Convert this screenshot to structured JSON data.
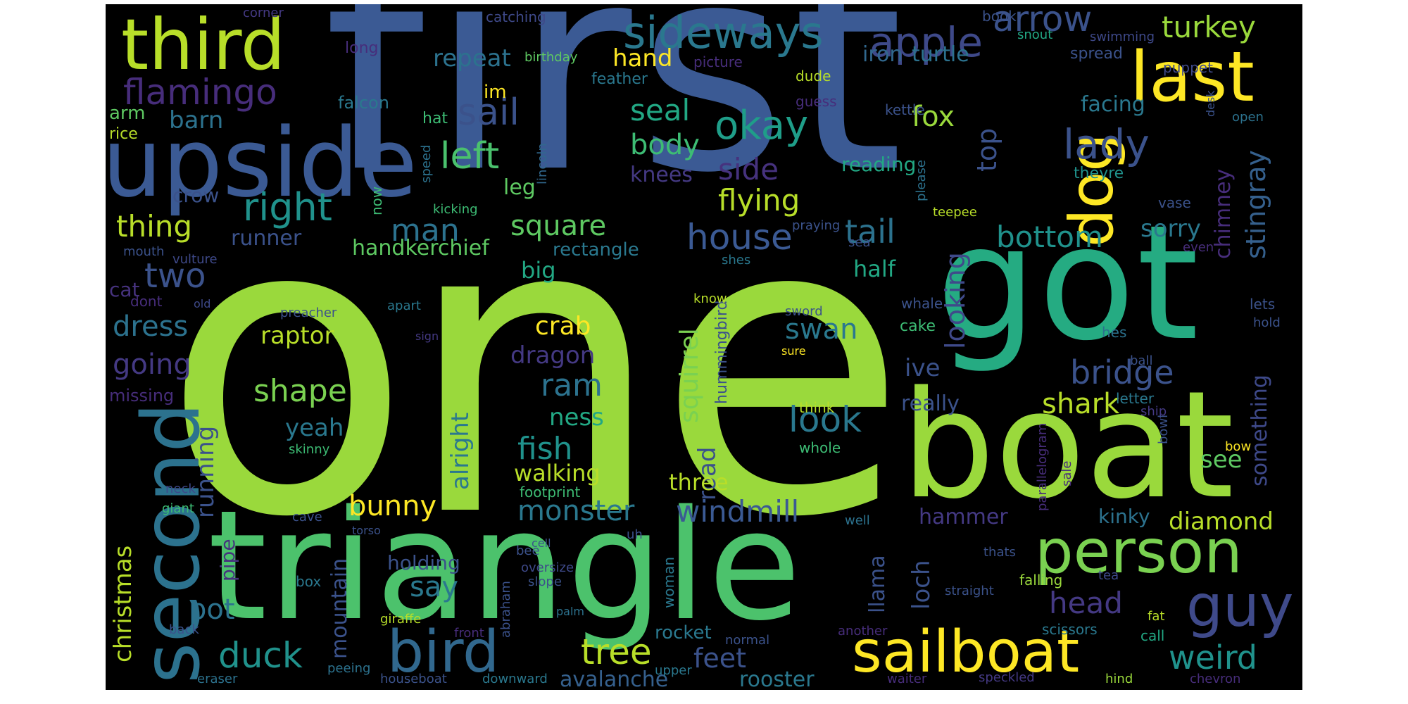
{
  "background_color": "#000000",
  "colormap": "viridis",
  "words": [
    {
      "text": "one",
      "color": "#9ad93c"
    },
    {
      "text": "first",
      "color": "#3b5a94"
    },
    {
      "text": "triangle",
      "color": "#4cc26c"
    },
    {
      "text": "got",
      "color": "#25ab82"
    },
    {
      "text": "boat",
      "color": "#9ad93c"
    },
    {
      "text": "upside",
      "color": "#3b5a94"
    },
    {
      "text": "second",
      "color": "#2c728e"
    },
    {
      "text": "third",
      "color": "#b8de29"
    },
    {
      "text": "last",
      "color": "#fde725"
    },
    {
      "text": "dog",
      "color": "#fde725"
    },
    {
      "text": "person",
      "color": "#7ad151"
    },
    {
      "text": "sailboat",
      "color": "#fde725"
    },
    {
      "text": "bird",
      "color": "#31688e"
    },
    {
      "text": "guy",
      "color": "#3f4a8a"
    },
    {
      "text": "sideways",
      "color": "#2a788e"
    },
    {
      "text": "apple",
      "color": "#3e4989"
    },
    {
      "text": "arrow",
      "color": "#3b528b"
    },
    {
      "text": "turkey",
      "color": "#9ad93c"
    },
    {
      "text": "flamingo",
      "color": "#472d7b"
    },
    {
      "text": "repeat",
      "color": "#2c728e"
    },
    {
      "text": "sail",
      "color": "#3b528b"
    },
    {
      "text": "okay",
      "color": "#1f9e89"
    },
    {
      "text": "lady",
      "color": "#3b528b"
    },
    {
      "text": "fox",
      "color": "#9ad93c"
    },
    {
      "text": "hand",
      "color": "#fde725"
    },
    {
      "text": "iron",
      "color": "#31688e"
    },
    {
      "text": "turtle",
      "color": "#2c728e"
    },
    {
      "text": "seal",
      "color": "#22a884"
    },
    {
      "text": "facing",
      "color": "#2a788e"
    },
    {
      "text": "barn",
      "color": "#2c728e"
    },
    {
      "text": "body",
      "color": "#3dbc74"
    },
    {
      "text": "left",
      "color": "#4ac16d"
    },
    {
      "text": "right",
      "color": "#20928c"
    },
    {
      "text": "side",
      "color": "#46327e"
    },
    {
      "text": "knees",
      "color": "#443983"
    },
    {
      "text": "flying",
      "color": "#b8de29"
    },
    {
      "text": "reading",
      "color": "#22a884"
    },
    {
      "text": "top",
      "color": "#3b528b"
    },
    {
      "text": "crow",
      "color": "#3b528b"
    },
    {
      "text": "leg",
      "color": "#5ec962"
    },
    {
      "text": "thing",
      "color": "#b8de29"
    },
    {
      "text": "man",
      "color": "#2c728e"
    },
    {
      "text": "square",
      "color": "#5ec962"
    },
    {
      "text": "house",
      "color": "#3b5a94"
    },
    {
      "text": "tail",
      "color": "#2c728e"
    },
    {
      "text": "bottom",
      "color": "#20928c"
    },
    {
      "text": "sorry",
      "color": "#2a788e"
    },
    {
      "text": "stingray",
      "color": "#35608d"
    },
    {
      "text": "chimney",
      "color": "#472d7b"
    },
    {
      "text": "runner",
      "color": "#3b528b"
    },
    {
      "text": "handkerchief",
      "color": "#5ec962"
    },
    {
      "text": "rectangle",
      "color": "#2a788e"
    },
    {
      "text": "two",
      "color": "#3b528b"
    },
    {
      "text": "big",
      "color": "#22a884"
    },
    {
      "text": "looking",
      "color": "#3f4a8a"
    },
    {
      "text": "half",
      "color": "#22a884"
    },
    {
      "text": "dress",
      "color": "#2c728e"
    },
    {
      "text": "raptor",
      "color": "#b8de29"
    },
    {
      "text": "swan",
      "color": "#2a788e"
    },
    {
      "text": "crab",
      "color": "#fde725"
    },
    {
      "text": "squirrel",
      "color": "#7ad151"
    },
    {
      "text": "hummingbird",
      "color": "#3b528b"
    },
    {
      "text": "shape",
      "color": "#7ad151"
    },
    {
      "text": "going",
      "color": "#443983"
    },
    {
      "text": "dragon",
      "color": "#443983"
    },
    {
      "text": "ram",
      "color": "#2c728e"
    },
    {
      "text": "look",
      "color": "#2a788e"
    },
    {
      "text": "ive",
      "color": "#3b528b"
    },
    {
      "text": "bridge",
      "color": "#3b528b"
    },
    {
      "text": "alright",
      "color": "#2a788e"
    },
    {
      "text": "ness",
      "color": "#22a884"
    },
    {
      "text": "really",
      "color": "#3b528b"
    },
    {
      "text": "shark",
      "color": "#b8de29"
    },
    {
      "text": "yeah",
      "color": "#2a788e"
    },
    {
      "text": "fish",
      "color": "#20928c"
    },
    {
      "text": "road",
      "color": "#3b528b"
    },
    {
      "text": "something",
      "color": "#3e4989"
    },
    {
      "text": "see",
      "color": "#5ec962"
    },
    {
      "text": "running",
      "color": "#3b528b"
    },
    {
      "text": "walking",
      "color": "#b8de29"
    },
    {
      "text": "three",
      "color": "#b8de29"
    },
    {
      "text": "christmas",
      "color": "#b8de29"
    },
    {
      "text": "bunny",
      "color": "#fde725"
    },
    {
      "text": "monster",
      "color": "#2a788e"
    },
    {
      "text": "windmill",
      "color": "#3b5a94"
    },
    {
      "text": "hammer",
      "color": "#443983"
    },
    {
      "text": "kinky",
      "color": "#2c728e"
    },
    {
      "text": "diamond",
      "color": "#b8de29"
    },
    {
      "text": "pot",
      "color": "#2c728e"
    },
    {
      "text": "say",
      "color": "#2a788e"
    },
    {
      "text": "mountain",
      "color": "#3b528b"
    },
    {
      "text": "llama",
      "color": "#3b528b"
    },
    {
      "text": "loch",
      "color": "#3b528b"
    },
    {
      "text": "head",
      "color": "#443983"
    },
    {
      "text": "duck",
      "color": "#20928c"
    },
    {
      "text": "tree",
      "color": "#b8de29"
    },
    {
      "text": "feet",
      "color": "#3b528b"
    },
    {
      "text": "weird",
      "color": "#20928c"
    },
    {
      "text": "avalanche",
      "color": "#35608d"
    },
    {
      "text": "rooster",
      "color": "#2a788e"
    },
    {
      "text": "holding",
      "color": "#3b528b"
    },
    {
      "text": "rocket",
      "color": "#2a788e"
    },
    {
      "text": "pipe",
      "color": "#46327e"
    },
    {
      "text": "cat",
      "color": "#46327e"
    },
    {
      "text": "missing",
      "color": "#472d7b"
    },
    {
      "text": "im",
      "color": "#fde725"
    },
    {
      "text": "feather",
      "color": "#2a788e"
    },
    {
      "text": "falcon",
      "color": "#2a788e"
    },
    {
      "text": "arm",
      "color": "#5ec962"
    },
    {
      "text": "rice",
      "color": "#b8de29"
    },
    {
      "text": "corner",
      "color": "#443983"
    },
    {
      "text": "long",
      "color": "#472d7b"
    },
    {
      "text": "catching",
      "color": "#3e4989"
    },
    {
      "text": "birthday",
      "color": "#5ec962"
    },
    {
      "text": "picture",
      "color": "#472d7b"
    },
    {
      "text": "dude",
      "color": "#b8de29"
    },
    {
      "text": "guess",
      "color": "#472d7b"
    },
    {
      "text": "kettle",
      "color": "#3b528b"
    },
    {
      "text": "hat",
      "color": "#3dbc74"
    },
    {
      "text": "speed",
      "color": "#2c728e"
    },
    {
      "text": "lincoln",
      "color": "#31688e"
    },
    {
      "text": "kicking",
      "color": "#3dbc74"
    },
    {
      "text": "now",
      "color": "#3dbc74"
    },
    {
      "text": "praying",
      "color": "#3b528b"
    },
    {
      "text": "please",
      "color": "#2c728e"
    },
    {
      "text": "teepee",
      "color": "#b8de29"
    },
    {
      "text": "vase",
      "color": "#3b528b"
    },
    {
      "text": "theyre",
      "color": "#20928c"
    },
    {
      "text": "puppet",
      "color": "#3e4989"
    },
    {
      "text": "swimming",
      "color": "#3e4989"
    },
    {
      "text": "spread",
      "color": "#3b528b"
    },
    {
      "text": "snout",
      "color": "#22a884"
    },
    {
      "text": "book",
      "color": "#3b528b"
    },
    {
      "text": "desk",
      "color": "#3b528b"
    },
    {
      "text": "open",
      "color": "#2c728e"
    },
    {
      "text": "mouth",
      "color": "#3b528b"
    },
    {
      "text": "vulture",
      "color": "#3e4989"
    },
    {
      "text": "dont",
      "color": "#472d7b"
    },
    {
      "text": "old",
      "color": "#3e4989"
    },
    {
      "text": "preacher",
      "color": "#3b528b"
    },
    {
      "text": "apart",
      "color": "#2a788e"
    },
    {
      "text": "sign",
      "color": "#443983"
    },
    {
      "text": "skinny",
      "color": "#3dbc74"
    },
    {
      "text": "shes",
      "color": "#2a788e"
    },
    {
      "text": "know",
      "color": "#b8de29"
    },
    {
      "text": "sea",
      "color": "#3b528b"
    },
    {
      "text": "even",
      "color": "#472d7b"
    },
    {
      "text": "sword",
      "color": "#3b528b"
    },
    {
      "text": "whale",
      "color": "#3b528b"
    },
    {
      "text": "cake",
      "color": "#3dbc74"
    },
    {
      "text": "sure",
      "color": "#fde725"
    },
    {
      "text": "think",
      "color": "#b8de29"
    },
    {
      "text": "whole",
      "color": "#3dbc74"
    },
    {
      "text": "lets",
      "color": "#3b528b"
    },
    {
      "text": "hold",
      "color": "#3b528b"
    },
    {
      "text": "hes",
      "color": "#2c728e"
    },
    {
      "text": "ball",
      "color": "#3b528b"
    },
    {
      "text": "letter",
      "color": "#2a788e"
    },
    {
      "text": "ship",
      "color": "#443983"
    },
    {
      "text": "bowl",
      "color": "#3b528b"
    },
    {
      "text": "bow",
      "color": "#fde725"
    },
    {
      "text": "parallelogram",
      "color": "#472d7b"
    },
    {
      "text": "sale",
      "color": "#472d7b"
    },
    {
      "text": "neck",
      "color": "#3e4989"
    },
    {
      "text": "giant",
      "color": "#3dbc74"
    },
    {
      "text": "cave",
      "color": "#3b528b"
    },
    {
      "text": "torso",
      "color": "#3b528b"
    },
    {
      "text": "footprint",
      "color": "#3dbc74"
    },
    {
      "text": "oversize",
      "color": "#3e4989"
    },
    {
      "text": "bee",
      "color": "#3b528b"
    },
    {
      "text": "uh",
      "color": "#3b528b"
    },
    {
      "text": "cell",
      "color": "#3b528b"
    },
    {
      "text": "well",
      "color": "#2c728e"
    },
    {
      "text": "thats",
      "color": "#3b528b"
    },
    {
      "text": "slope",
      "color": "#3b528b"
    },
    {
      "text": "box",
      "color": "#2a788e"
    },
    {
      "text": "straight",
      "color": "#3b528b"
    },
    {
      "text": "falling",
      "color": "#9ad93c"
    },
    {
      "text": "tea",
      "color": "#3e4989"
    },
    {
      "text": "back",
      "color": "#3b528b"
    },
    {
      "text": "giraffe",
      "color": "#b8de29"
    },
    {
      "text": "abraham",
      "color": "#3b528b"
    },
    {
      "text": "front",
      "color": "#472d7b"
    },
    {
      "text": "palm",
      "color": "#2c728e"
    },
    {
      "text": "woman",
      "color": "#2a788e"
    },
    {
      "text": "normal",
      "color": "#3b528b"
    },
    {
      "text": "another",
      "color": "#472d7b"
    },
    {
      "text": "scissors",
      "color": "#2a788e"
    },
    {
      "text": "call",
      "color": "#22a884"
    },
    {
      "text": "fat",
      "color": "#b8de29"
    },
    {
      "text": "eraser",
      "color": "#2c728e"
    },
    {
      "text": "peeing",
      "color": "#2c728e"
    },
    {
      "text": "houseboat",
      "color": "#3b528b"
    },
    {
      "text": "downward",
      "color": "#2a788e"
    },
    {
      "text": "upper",
      "color": "#2a788e"
    },
    {
      "text": "waiter",
      "color": "#472d7b"
    },
    {
      "text": "speckled",
      "color": "#443983"
    },
    {
      "text": "hind",
      "color": "#9ad93c"
    },
    {
      "text": "chevron",
      "color": "#472d7b"
    }
  ]
}
